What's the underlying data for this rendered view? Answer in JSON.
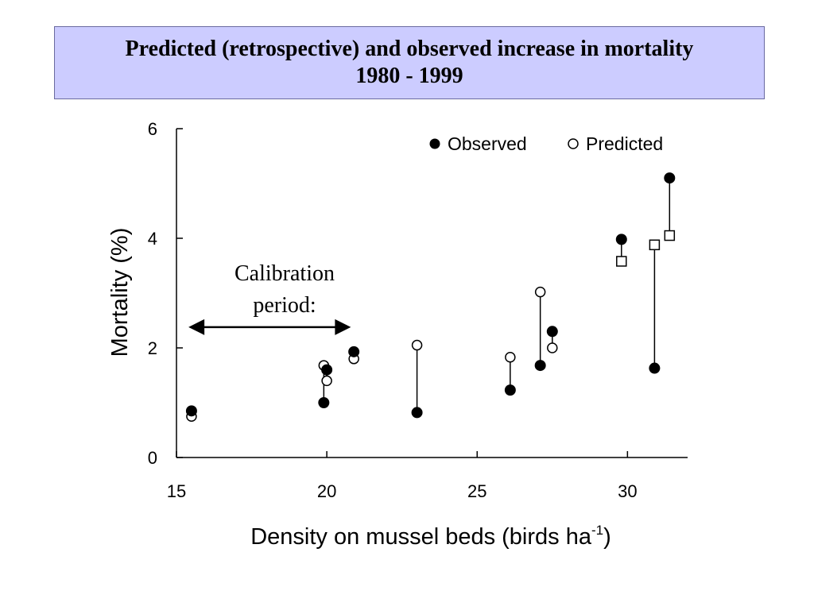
{
  "chart_data": {
    "type": "scatter",
    "title_line1": "Predicted (retrospective) and observed increase in mortality",
    "title_line2": "1980 - 1999",
    "xlabel_main": "Density on mussel beds (birds ha",
    "xlabel_sup": "-1",
    "xlabel_close": ")",
    "ylabel": "Mortality (%)",
    "xlim": [
      15,
      32
    ],
    "ylim": [
      0,
      6
    ],
    "xticks": [
      15,
      20,
      25,
      30
    ],
    "yticks": [
      0,
      2,
      4,
      6
    ],
    "legend_position": "top-right",
    "legend": [
      {
        "name": "Observed",
        "marker": "filled-circle"
      },
      {
        "name": "Predicted",
        "marker": "open-circle"
      }
    ],
    "annotation": {
      "line1": "Calibration",
      "line2": "period:",
      "arrow_x": [
        15.4,
        20.8
      ],
      "arrow_y": 2.35
    },
    "pairs": [
      {
        "x": 15.5,
        "observed": 0.85,
        "predicted": 0.75,
        "predicted_marker": "circle"
      },
      {
        "x": 19.9,
        "observed": 1.0,
        "predicted": 1.68,
        "predicted_marker": "circle"
      },
      {
        "x": 20.0,
        "observed": 1.6,
        "predicted": 1.4,
        "predicted_marker": "circle"
      },
      {
        "x": 20.9,
        "observed": 1.93,
        "predicted": 1.8,
        "predicted_marker": "circle"
      },
      {
        "x": 23.0,
        "observed": 0.82,
        "predicted": 2.05,
        "predicted_marker": "circle"
      },
      {
        "x": 26.1,
        "observed": 1.23,
        "predicted": 1.83,
        "predicted_marker": "circle"
      },
      {
        "x": 27.1,
        "observed": 1.68,
        "predicted": 3.02,
        "predicted_marker": "circle"
      },
      {
        "x": 27.5,
        "observed": 2.3,
        "predicted": 2.0,
        "predicted_marker": "circle"
      },
      {
        "x": 29.8,
        "observed": 3.98,
        "predicted": 3.58,
        "predicted_marker": "square"
      },
      {
        "x": 30.9,
        "observed": 1.63,
        "predicted": 3.88,
        "predicted_marker": "square"
      },
      {
        "x": 31.4,
        "observed": 5.1,
        "predicted": 4.05,
        "predicted_marker": "square"
      }
    ]
  }
}
